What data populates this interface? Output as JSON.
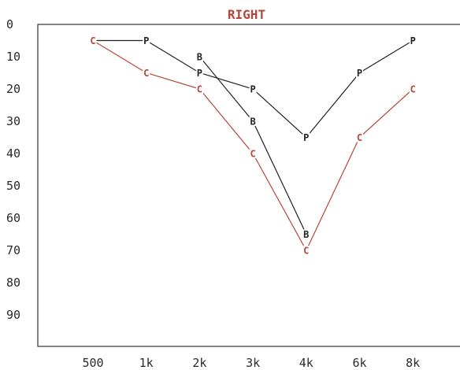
{
  "chart_data": {
    "type": "line",
    "title": "RIGHT",
    "title_color": "#b5463c",
    "xlabel": "",
    "ylabel": "",
    "categories": [
      "500",
      "1k",
      "2k",
      "3k",
      "4k",
      "6k",
      "8k"
    ],
    "y_ticks": [
      "0",
      "10",
      "20",
      "30",
      "40",
      "50",
      "60",
      "70",
      "80",
      "90"
    ],
    "ylim": [
      0,
      100
    ],
    "y_inverted": true,
    "grid": false,
    "series": [
      {
        "marker": "P",
        "color": "#222222",
        "points": [
          {
            "x": "500",
            "y": 5
          },
          {
            "x": "1k",
            "y": 5
          },
          {
            "x": "2k",
            "y": 15
          },
          {
            "x": "3k",
            "y": 20
          },
          {
            "x": "4k",
            "y": 35
          },
          {
            "x": "6k",
            "y": 15
          },
          {
            "x": "8k",
            "y": 5
          }
        ]
      },
      {
        "marker": "B",
        "color": "#222222",
        "points": [
          {
            "x": "2k",
            "y": 10
          },
          {
            "x": "3k",
            "y": 30
          },
          {
            "x": "4k",
            "y": 65
          }
        ]
      },
      {
        "marker": "C",
        "color": "#b5463c",
        "points": [
          {
            "x": "500",
            "y": 5
          },
          {
            "x": "1k",
            "y": 15
          },
          {
            "x": "2k",
            "y": 20
          },
          {
            "x": "3k",
            "y": 40
          },
          {
            "x": "4k",
            "y": 70
          },
          {
            "x": "6k",
            "y": 35
          },
          {
            "x": "8k",
            "y": 20
          }
        ]
      }
    ]
  }
}
